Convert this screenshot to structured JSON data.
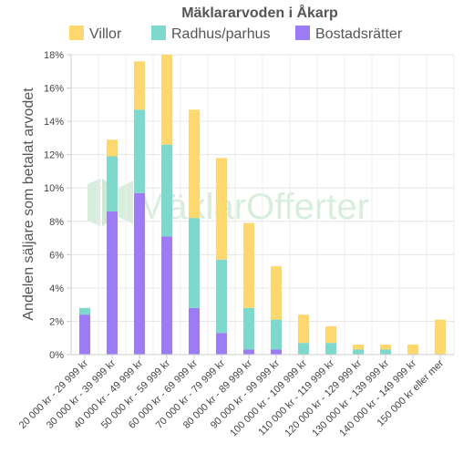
{
  "chart_data": {
    "type": "bar",
    "stacked": true,
    "title": "Mäklararvoden i Åkarp",
    "ylabel": "Andelen säljare som betalat arvodet",
    "xlabel": "",
    "ylim": [
      0,
      18
    ],
    "y_ticks": [
      "0%",
      "2%",
      "4%",
      "6%",
      "8%",
      "10%",
      "12%",
      "14%",
      "16%",
      "18%"
    ],
    "grid": true,
    "legend_position": "top",
    "categories": [
      "20 000 kr - 29 999 kr",
      "30 000 kr - 39 999 kr",
      "40 000 kr - 49 999 kr",
      "50 000 kr - 59 999 kr",
      "60 000 kr - 69 999 kr",
      "70 000 kr - 79 999 kr",
      "80 000 kr - 89 999 kr",
      "90 000 kr - 99 999 kr",
      "100 000 kr - 109 999 kr",
      "110 000 kr - 119 999 kr",
      "120 000 kr - 129 999 kr",
      "130 000 kr - 139 999 kr",
      "140 000 kr - 149 999 kr",
      "150 000 kr eller mer"
    ],
    "series": [
      {
        "name": "Bostadsrätter",
        "color": "#9b7cf4",
        "values": [
          2.4,
          8.6,
          9.7,
          7.1,
          2.8,
          1.3,
          0.3,
          0.3,
          0,
          0,
          0,
          0,
          0,
          0
        ]
      },
      {
        "name": "Radhus/parhus",
        "color": "#7dd9cc",
        "values": [
          0.4,
          3.3,
          5.0,
          5.5,
          5.4,
          4.4,
          2.5,
          1.8,
          0.7,
          0.7,
          0.3,
          0.3,
          0,
          0
        ]
      },
      {
        "name": "Villor",
        "color": "#fdd86f",
        "values": [
          0,
          1.0,
          2.9,
          5.4,
          6.5,
          6.1,
          5.1,
          3.2,
          1.7,
          1.0,
          0.3,
          0.3,
          0.6,
          2.1
        ]
      }
    ],
    "legend_order": [
      "Villor",
      "Radhus/parhus",
      "Bostadsrätter"
    ],
    "watermark": "MäklarOfferter"
  }
}
